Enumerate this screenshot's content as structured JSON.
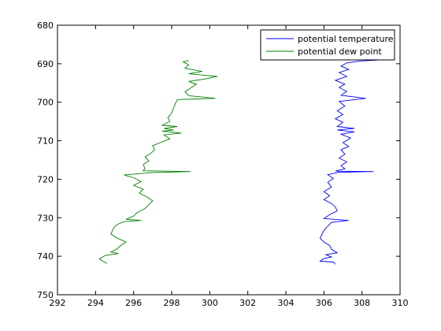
{
  "chart_data": {
    "type": "line",
    "title": "",
    "xlabel": "",
    "ylabel": "",
    "xlim": [
      292,
      310
    ],
    "ylim": [
      750,
      680
    ],
    "y_reversed": true,
    "grid": false,
    "legend_position": "top-right",
    "x_ticks": [
      "292",
      "294",
      "296",
      "298",
      "300",
      "302",
      "304",
      "306",
      "308",
      "310"
    ],
    "y_ticks": [
      "680",
      "690",
      "700",
      "710",
      "720",
      "730",
      "740",
      "750"
    ],
    "series": [
      {
        "name": "potential temperature",
        "color": "#0000ff",
        "points": [
          [
            308.9,
            689.0
          ],
          [
            307.9,
            689.3
          ],
          [
            307.2,
            689.8
          ],
          [
            306.9,
            690.6
          ],
          [
            307.3,
            691.5
          ],
          [
            306.8,
            692.3
          ],
          [
            307.2,
            693.3
          ],
          [
            306.6,
            694.3
          ],
          [
            307.1,
            695.3
          ],
          [
            306.8,
            696.2
          ],
          [
            307.2,
            697.2
          ],
          [
            306.9,
            698.2
          ],
          [
            308.2,
            699.0
          ],
          [
            306.8,
            699.8
          ],
          [
            307.1,
            701.0
          ],
          [
            306.7,
            702.2
          ],
          [
            307.0,
            703.2
          ],
          [
            306.6,
            704.3
          ],
          [
            307.0,
            705.2
          ],
          [
            306.7,
            706.3
          ],
          [
            307.6,
            706.8
          ],
          [
            306.7,
            707.2
          ],
          [
            307.6,
            707.7
          ],
          [
            306.9,
            708.3
          ],
          [
            307.4,
            709.3
          ],
          [
            307.0,
            710.5
          ],
          [
            307.3,
            711.5
          ],
          [
            306.9,
            712.3
          ],
          [
            307.1,
            713.5
          ],
          [
            306.8,
            714.5
          ],
          [
            307.2,
            715.5
          ],
          [
            306.9,
            716.5
          ],
          [
            307.1,
            717.3
          ],
          [
            306.6,
            717.9
          ],
          [
            308.6,
            718.0
          ],
          [
            306.8,
            718.2
          ],
          [
            306.2,
            718.8
          ],
          [
            306.5,
            719.8
          ],
          [
            306.2,
            720.8
          ],
          [
            306.4,
            722.0
          ],
          [
            306.0,
            723.2
          ],
          [
            306.3,
            724.3
          ],
          [
            306.0,
            725.3
          ],
          [
            306.4,
            726.3
          ],
          [
            306.6,
            727.2
          ],
          [
            306.7,
            728.2
          ],
          [
            306.3,
            729.2
          ],
          [
            306.0,
            730.2
          ],
          [
            307.3,
            730.7
          ],
          [
            306.4,
            731.2
          ],
          [
            306.2,
            732.2
          ],
          [
            306.0,
            733.3
          ],
          [
            305.9,
            734.3
          ],
          [
            305.8,
            735.3
          ],
          [
            306.0,
            736.3
          ],
          [
            306.3,
            737.2
          ],
          [
            306.4,
            738.2
          ],
          [
            306.7,
            739.1
          ],
          [
            306.1,
            739.6
          ],
          [
            306.4,
            740.2
          ],
          [
            306.0,
            740.6
          ],
          [
            305.8,
            741.3
          ],
          [
            306.5,
            741.5
          ],
          [
            306.6,
            742.1
          ]
        ]
      },
      {
        "name": "potential dew point",
        "color": "#008000",
        "points": [
          [
            298.9,
            689.2
          ],
          [
            298.6,
            689.5
          ],
          [
            298.9,
            690.3
          ],
          [
            298.7,
            691.2
          ],
          [
            299.6,
            692.0
          ],
          [
            298.9,
            692.6
          ],
          [
            300.4,
            693.3
          ],
          [
            299.7,
            694.0
          ],
          [
            298.9,
            694.6
          ],
          [
            299.3,
            695.3
          ],
          [
            299.0,
            696.3
          ],
          [
            298.7,
            697.3
          ],
          [
            298.9,
            698.3
          ],
          [
            300.3,
            699.0
          ],
          [
            298.3,
            699.3
          ],
          [
            298.2,
            700.3
          ],
          [
            298.1,
            701.5
          ],
          [
            298.0,
            702.8
          ],
          [
            297.8,
            704.0
          ],
          [
            297.9,
            705.0
          ],
          [
            297.5,
            706.0
          ],
          [
            298.3,
            706.3
          ],
          [
            297.6,
            706.8
          ],
          [
            298.1,
            707.2
          ],
          [
            297.5,
            707.5
          ],
          [
            298.5,
            708.0
          ],
          [
            297.6,
            708.5
          ],
          [
            297.9,
            709.5
          ],
          [
            297.4,
            710.5
          ],
          [
            297.0,
            711.3
          ],
          [
            297.1,
            712.3
          ],
          [
            296.9,
            713.3
          ],
          [
            296.6,
            714.2
          ],
          [
            296.8,
            715.2
          ],
          [
            296.5,
            716.2
          ],
          [
            296.6,
            717.2
          ],
          [
            296.5,
            717.8
          ],
          [
            299.0,
            718.0
          ],
          [
            296.9,
            718.3
          ],
          [
            295.5,
            718.9
          ],
          [
            296.0,
            719.6
          ],
          [
            296.4,
            720.6
          ],
          [
            296.0,
            721.6
          ],
          [
            296.5,
            722.6
          ],
          [
            296.3,
            723.6
          ],
          [
            296.7,
            724.6
          ],
          [
            297.0,
            725.6
          ],
          [
            296.8,
            726.6
          ],
          [
            296.6,
            727.6
          ],
          [
            296.2,
            728.6
          ],
          [
            296.0,
            729.6
          ],
          [
            295.6,
            730.4
          ],
          [
            296.4,
            730.7
          ],
          [
            295.5,
            731.0
          ],
          [
            295.2,
            731.6
          ],
          [
            295.0,
            732.3
          ],
          [
            294.9,
            733.2
          ],
          [
            294.8,
            734.2
          ],
          [
            295.1,
            735.2
          ],
          [
            295.6,
            736.3
          ],
          [
            295.3,
            737.3
          ],
          [
            295.1,
            738.2
          ],
          [
            294.8,
            738.9
          ],
          [
            295.2,
            739.3
          ],
          [
            294.5,
            739.8
          ],
          [
            294.2,
            740.7
          ],
          [
            294.4,
            741.3
          ],
          [
            294.6,
            741.9
          ]
        ]
      }
    ]
  }
}
